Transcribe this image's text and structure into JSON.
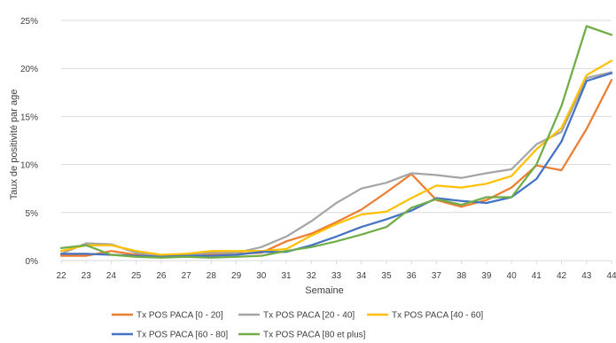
{
  "chart_data": {
    "type": "line",
    "title": "",
    "xlabel": "Semaine",
    "ylabel": "Taux de positivité par age",
    "categories": [
      "22",
      "23",
      "24",
      "25",
      "26",
      "27",
      "28",
      "29",
      "30",
      "31",
      "32",
      "33",
      "34",
      "35",
      "36",
      "37",
      "38",
      "39",
      "40",
      "41",
      "42",
      "43",
      "44"
    ],
    "ylim": [
      0,
      25
    ],
    "yticks": [
      "0%",
      "5%",
      "10%",
      "15%",
      "20%",
      "25%"
    ],
    "grid": "horizontal",
    "legend_position": "bottom",
    "series": [
      {
        "name": "Tx POS PACA [0 - 20]",
        "color": "#ED7D31",
        "values": [
          0.5,
          0.5,
          1.0,
          0.6,
          0.4,
          0.6,
          0.7,
          0.7,
          0.8,
          2.0,
          2.8,
          4.0,
          5.3,
          7.1,
          9.0,
          6.3,
          5.6,
          6.3,
          7.6,
          9.9,
          9.4,
          13.7,
          18.8
        ]
      },
      {
        "name": "Tx POS PACA [20 - 40]",
        "color": "#A5A5A5",
        "values": [
          0.7,
          1.8,
          1.7,
          0.8,
          0.5,
          0.6,
          0.8,
          0.8,
          1.4,
          2.5,
          4.1,
          6.0,
          7.5,
          8.1,
          9.1,
          8.9,
          8.6,
          9.1,
          9.5,
          12.1,
          13.4,
          19.0,
          19.6
        ]
      },
      {
        "name": "Tx POS PACA [40 - 60]",
        "color": "#FFC000",
        "values": [
          1.0,
          1.6,
          1.6,
          1.0,
          0.6,
          0.7,
          1.0,
          1.0,
          1.0,
          1.2,
          2.6,
          3.8,
          4.8,
          5.1,
          6.5,
          7.8,
          7.6,
          8.0,
          8.8,
          11.6,
          13.8,
          19.3,
          20.8
        ]
      },
      {
        "name": "Tx POS PACA [60 - 80]",
        "color": "#4472C4",
        "values": [
          0.7,
          0.7,
          0.6,
          0.5,
          0.4,
          0.5,
          0.5,
          0.6,
          0.9,
          0.9,
          1.6,
          2.5,
          3.5,
          4.3,
          5.2,
          6.5,
          6.2,
          6.0,
          6.6,
          8.5,
          12.4,
          18.7,
          19.5
        ]
      },
      {
        "name": "Tx POS PACA [80 et plus]",
        "color": "#70AD47",
        "values": [
          1.3,
          1.6,
          0.6,
          0.4,
          0.3,
          0.4,
          0.3,
          0.4,
          0.5,
          1.0,
          1.4,
          2.0,
          2.7,
          3.5,
          5.5,
          6.4,
          5.8,
          6.6,
          6.6,
          10.0,
          16.1,
          24.4,
          23.5
        ]
      }
    ]
  }
}
